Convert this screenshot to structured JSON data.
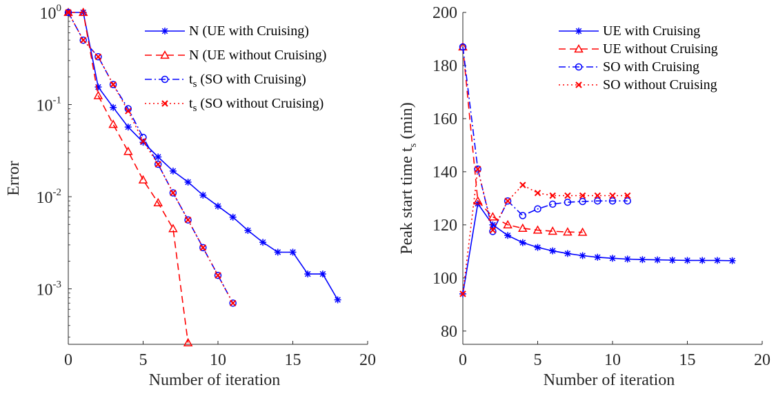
{
  "chart_data": [
    {
      "type": "line",
      "id": "error",
      "ylabel": "Error",
      "xlabel": "Number of iteration",
      "yscale": "log",
      "xlim": [
        0,
        20
      ],
      "ylim": [
        0.00025,
        1
      ],
      "xticks": [
        0,
        5,
        10,
        15,
        20
      ],
      "yticks": [
        {
          "value": 1,
          "base": "10",
          "exp": "0"
        },
        {
          "value": 0.1,
          "base": "10",
          "exp": "-1"
        },
        {
          "value": 0.01,
          "base": "10",
          "exp": "-2"
        },
        {
          "value": 0.001,
          "base": "10",
          "exp": "-3"
        }
      ],
      "legend_position": "top-right",
      "series": [
        {
          "name": "N (UE with Cruising)",
          "name_parts": [
            "N (UE with Cruising)"
          ],
          "color": "#0000ff",
          "dash": "",
          "marker": "asterisk",
          "x": [
            0,
            1,
            2,
            3,
            4,
            5,
            6,
            7,
            8,
            9,
            10,
            11,
            12,
            13,
            14,
            15,
            16,
            17,
            18
          ],
          "y": [
            1,
            1,
            0.155,
            0.093,
            0.057,
            0.039,
            0.027,
            0.019,
            0.0144,
            0.0104,
            0.0079,
            0.006,
            0.0043,
            0.0032,
            0.0025,
            0.0025,
            0.00145,
            0.00145,
            0.00076
          ]
        },
        {
          "name": "N (UE without Cruising)",
          "name_parts": [
            "N (UE without Cruising)"
          ],
          "color": "#ff0000",
          "dash": "10,6",
          "marker": "triangle",
          "x": [
            0,
            1,
            2,
            3,
            4,
            5,
            6,
            7,
            8
          ],
          "y": [
            1,
            1,
            0.125,
            0.061,
            0.031,
            0.0152,
            0.0086,
            0.0045,
            0.00026
          ]
        },
        {
          "name": "ts (SO with Cruising)",
          "name_parts": [
            "t",
            "s",
            " (SO with Cruising)"
          ],
          "color": "#0000ff",
          "dash": "10,4,2,4",
          "marker": "circle",
          "x": [
            0,
            1,
            2,
            3,
            4,
            5,
            6,
            7,
            8,
            9,
            10,
            11
          ],
          "y": [
            1,
            0.5,
            0.33,
            0.165,
            0.09,
            0.044,
            0.0225,
            0.011,
            0.0056,
            0.0028,
            0.0014,
            0.0007
          ]
        },
        {
          "name": "ts (SO without Cruising)",
          "name_parts": [
            "t",
            "s",
            " (SO without Cruising)"
          ],
          "color": "#ff0000",
          "dash": "2,4",
          "marker": "x",
          "x": [
            0,
            1,
            2,
            3,
            4,
            5,
            6,
            7,
            8,
            9,
            10,
            11
          ],
          "y": [
            1,
            0.5,
            0.33,
            0.165,
            0.085,
            0.04,
            0.0225,
            0.011,
            0.0056,
            0.0028,
            0.0014,
            0.0007
          ]
        }
      ]
    },
    {
      "type": "line",
      "id": "peak",
      "ylabel": "Peak start time ts (min)",
      "ylabel_parts": [
        "Peak start time t",
        "s",
        " (min)"
      ],
      "xlabel": "Number of iteration",
      "yscale": "linear",
      "xlim": [
        0,
        20
      ],
      "ylim": [
        75,
        200
      ],
      "xticks": [
        0,
        5,
        10,
        15,
        20
      ],
      "yticks": [
        80,
        100,
        120,
        140,
        160,
        180,
        200
      ],
      "legend_position": "top-right",
      "series": [
        {
          "name": "UE with Cruising",
          "name_parts": [
            "UE with Cruising"
          ],
          "color": "#0000ff",
          "dash": "",
          "marker": "asterisk",
          "x": [
            0,
            1,
            2,
            3,
            4,
            5,
            6,
            7,
            8,
            9,
            10,
            11,
            12,
            13,
            14,
            15,
            16,
            17,
            18
          ],
          "y": [
            94,
            128,
            120,
            116,
            113.3,
            111.5,
            110.2,
            109.2,
            108.4,
            107.8,
            107.4,
            107.1,
            106.9,
            106.8,
            106.7,
            106.6,
            106.6,
            106.6,
            106.5
          ]
        },
        {
          "name": "UE without Cruising",
          "name_parts": [
            "UE without Cruising"
          ],
          "color": "#ff0000",
          "dash": "10,6",
          "marker": "triangle",
          "x": [
            0,
            1,
            2,
            3,
            4,
            5,
            6,
            7,
            8
          ],
          "y": [
            187,
            129,
            123,
            120,
            118.7,
            118,
            117.6,
            117.3,
            117.2
          ]
        },
        {
          "name": "SO with Cruising",
          "name_parts": [
            "SO with Cruising"
          ],
          "color": "#0000ff",
          "dash": "10,4,2,4",
          "marker": "circle",
          "x": [
            0,
            1,
            2,
            3,
            4,
            5,
            6,
            7,
            8,
            9,
            10,
            11
          ],
          "y": [
            187,
            141,
            117.5,
            129,
            123.5,
            126,
            127.8,
            128.5,
            128.8,
            129,
            129,
            129
          ]
        },
        {
          "name": "SO without Cruising",
          "name_parts": [
            "SO without Cruising"
          ],
          "color": "#ff0000",
          "dash": "2,4",
          "marker": "x",
          "x": [
            0,
            1,
            2,
            3,
            4,
            5,
            6,
            7,
            8,
            9,
            10,
            11
          ],
          "y": [
            94,
            141,
            118,
            129,
            135,
            132,
            131,
            131,
            131,
            131,
            131,
            131
          ]
        }
      ]
    }
  ]
}
